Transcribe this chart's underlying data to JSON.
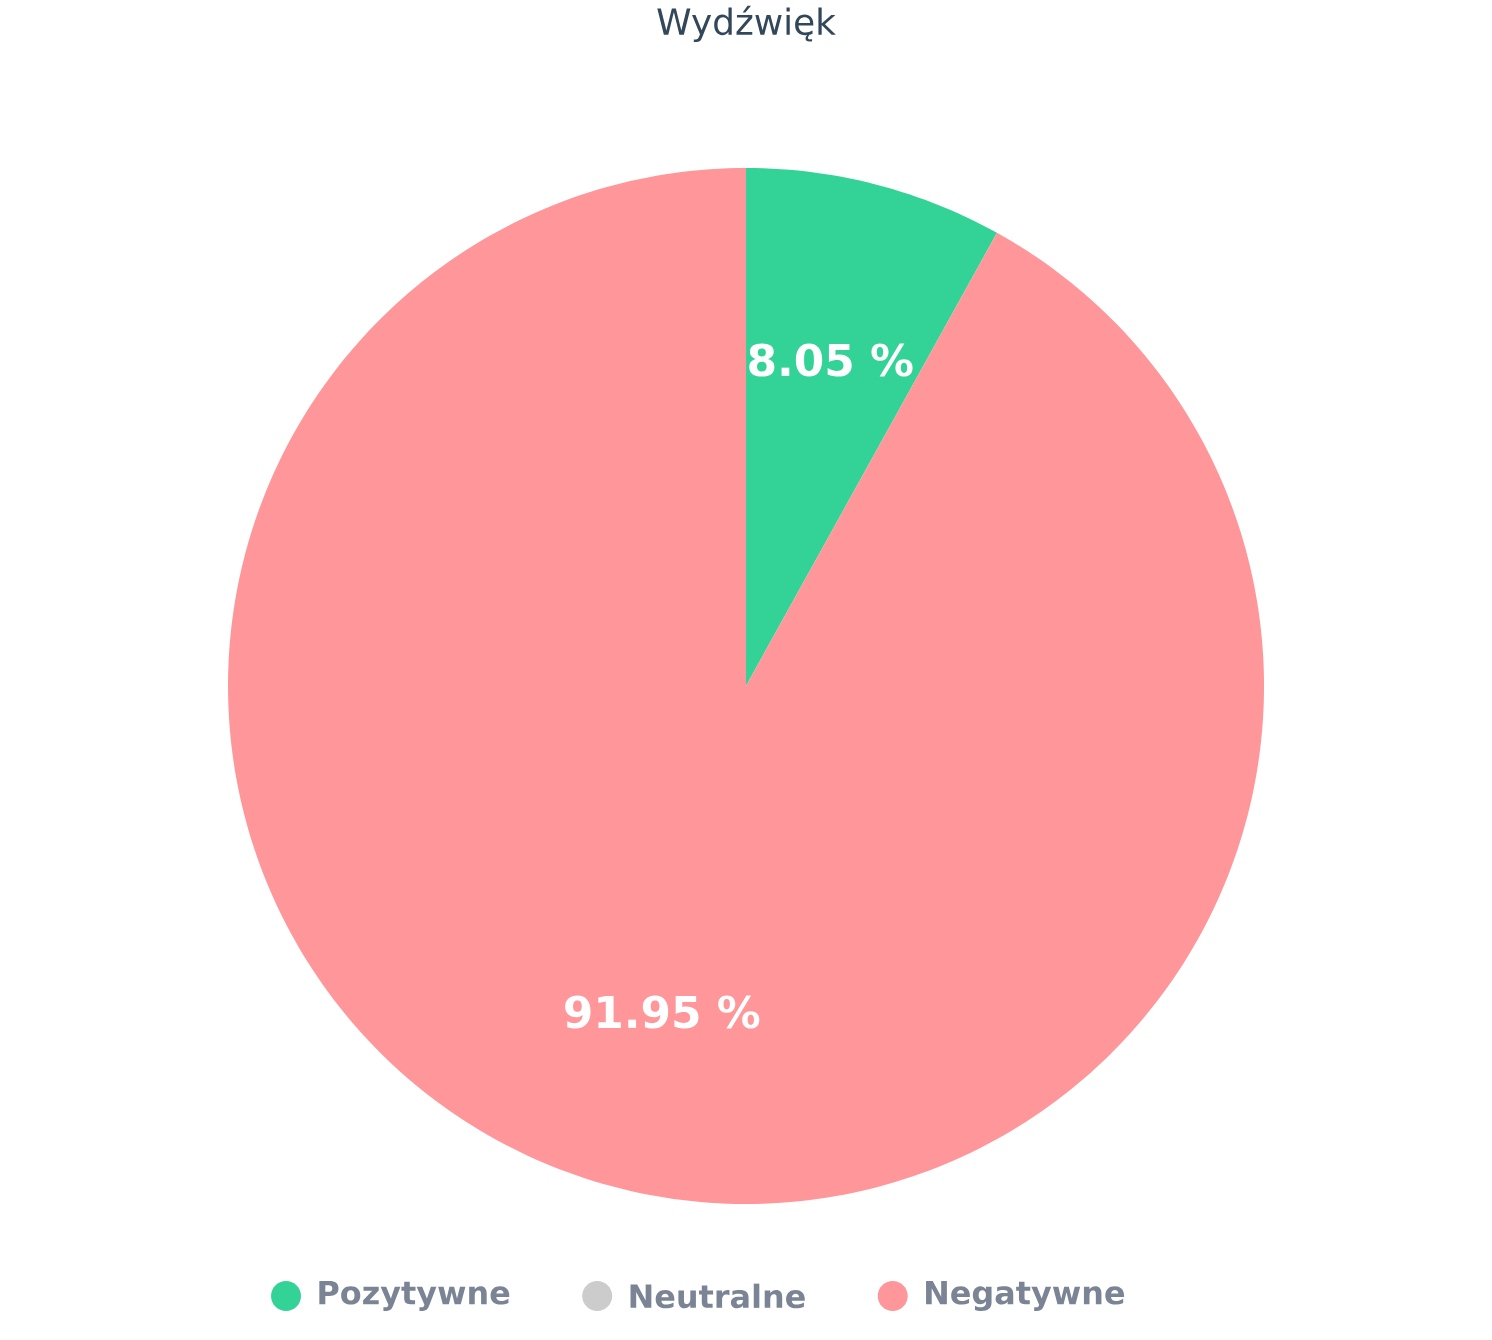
{
  "chart_data": {
    "type": "pie",
    "title": "Wydźwięk",
    "categories": [
      "Pozytywne",
      "Neutralne",
      "Negatywne"
    ],
    "values": [
      8.05,
      0,
      91.95
    ],
    "colors": [
      "#33d398",
      "#cccccc",
      "#ff9699"
    ],
    "value_labels": [
      "8.05 %",
      null,
      "91.95 %"
    ],
    "legend": "bottom"
  }
}
